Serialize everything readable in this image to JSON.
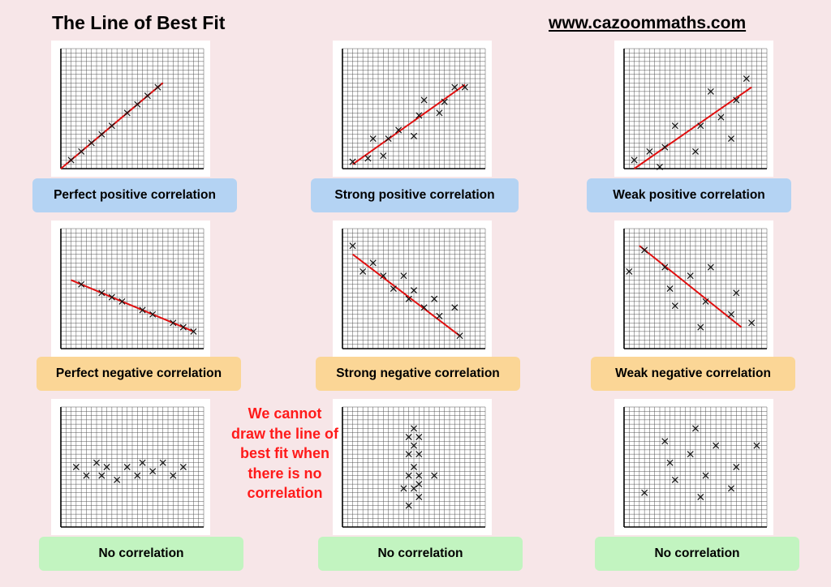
{
  "header": {
    "title": "The Line of Best Fit",
    "site": "www.cazoommaths.com"
  },
  "note": [
    "We cannot",
    "draw the line of",
    "best fit when",
    "there is no",
    "correlation"
  ],
  "colors": {
    "background": "#f7e6e8",
    "blue_label": "#b4d3f3",
    "orange_label": "#fbd696",
    "green_label": "#c2f4c0",
    "fit_line": "#e01010",
    "note_text": "#ff1a1a"
  },
  "chart_data": [
    {
      "type": "scatter",
      "label": "Perfect positive correlation",
      "label_color": "blue",
      "grid": true,
      "xlim": [
        0,
        14
      ],
      "ylim": [
        0,
        14
      ],
      "points": [
        [
          1,
          1
        ],
        [
          2,
          2
        ],
        [
          3,
          3
        ],
        [
          4,
          4
        ],
        [
          5,
          5
        ],
        [
          6.5,
          6.5
        ],
        [
          7.5,
          7.5
        ],
        [
          8.5,
          8.5
        ],
        [
          9.5,
          9.5
        ]
      ],
      "fit_line": [
        [
          0,
          0
        ],
        [
          10,
          10
        ]
      ]
    },
    {
      "type": "scatter",
      "label": "Strong positive correlation",
      "label_color": "blue",
      "grid": true,
      "xlim": [
        0,
        14
      ],
      "ylim": [
        0,
        14
      ],
      "points": [
        [
          1,
          0.8
        ],
        [
          2.5,
          1.2
        ],
        [
          3,
          3.5
        ],
        [
          4,
          1.5
        ],
        [
          4.5,
          3.5
        ],
        [
          5.5,
          4.5
        ],
        [
          7,
          3.8
        ],
        [
          7.5,
          6.2
        ],
        [
          8,
          8
        ],
        [
          9.5,
          6.5
        ],
        [
          10,
          7.8
        ],
        [
          11,
          9.5
        ],
        [
          12,
          9.5
        ]
      ],
      "fit_line": [
        [
          1,
          0.5
        ],
        [
          12,
          9.8
        ]
      ]
    },
    {
      "type": "scatter",
      "label": "Weak positive correlation",
      "label_color": "blue",
      "grid": true,
      "xlim": [
        0,
        14
      ],
      "ylim": [
        0,
        14
      ],
      "points": [
        [
          1,
          1
        ],
        [
          2.5,
          2
        ],
        [
          3.5,
          0.2
        ],
        [
          4,
          2.5
        ],
        [
          5,
          5
        ],
        [
          7,
          2
        ],
        [
          7.5,
          5
        ],
        [
          8.5,
          9
        ],
        [
          9.5,
          6
        ],
        [
          10.5,
          3.5
        ],
        [
          11,
          8
        ],
        [
          12,
          10.5
        ]
      ],
      "fit_line": [
        [
          1,
          0
        ],
        [
          12.5,
          9.5
        ]
      ]
    },
    {
      "type": "scatter",
      "label": "Perfect negative correlation",
      "label_color": "orange",
      "grid": true,
      "xlim": [
        0,
        14
      ],
      "ylim": [
        0,
        14
      ],
      "points": [
        [
          2,
          7.5
        ],
        [
          4,
          6.5
        ],
        [
          5,
          6
        ],
        [
          6,
          5.5
        ],
        [
          8,
          4.5
        ],
        [
          9,
          4
        ],
        [
          11,
          3
        ],
        [
          12,
          2.5
        ],
        [
          13,
          2
        ]
      ],
      "fit_line": [
        [
          1,
          8
        ],
        [
          13,
          2
        ]
      ]
    },
    {
      "type": "scatter",
      "label": "Strong negative correlation",
      "label_color": "orange",
      "grid": true,
      "xlim": [
        0,
        14
      ],
      "ylim": [
        0,
        14
      ],
      "points": [
        [
          1,
          12
        ],
        [
          2,
          9
        ],
        [
          3,
          10
        ],
        [
          4,
          8.5
        ],
        [
          5,
          7
        ],
        [
          6,
          8.5
        ],
        [
          6.5,
          5.8
        ],
        [
          7,
          6.8
        ],
        [
          8,
          4.8
        ],
        [
          9,
          5.8
        ],
        [
          9.5,
          3.8
        ],
        [
          11,
          4.8
        ],
        [
          11.5,
          1.5
        ]
      ],
      "fit_line": [
        [
          1,
          11
        ],
        [
          11.5,
          1.5
        ]
      ]
    },
    {
      "type": "scatter",
      "label": "Weak negative correlation",
      "label_color": "orange",
      "grid": true,
      "xlim": [
        0,
        14
      ],
      "ylim": [
        0,
        14
      ],
      "points": [
        [
          0.5,
          9
        ],
        [
          2,
          11.5
        ],
        [
          4,
          9.5
        ],
        [
          4.5,
          7
        ],
        [
          5,
          5
        ],
        [
          6.5,
          8.5
        ],
        [
          7.5,
          2.5
        ],
        [
          8,
          5.5
        ],
        [
          8.5,
          9.5
        ],
        [
          10.5,
          4
        ],
        [
          11,
          6.5
        ],
        [
          12.5,
          3
        ]
      ],
      "fit_line": [
        [
          1.5,
          12
        ],
        [
          11.5,
          2.5
        ]
      ]
    },
    {
      "type": "scatter",
      "label": "No correlation",
      "label_color": "green",
      "grid": true,
      "xlim": [
        0,
        14
      ],
      "ylim": [
        0,
        14
      ],
      "points": [
        [
          1.5,
          7
        ],
        [
          2.5,
          6
        ],
        [
          3.5,
          7.5
        ],
        [
          4,
          6
        ],
        [
          4.5,
          7
        ],
        [
          5.5,
          5.5
        ],
        [
          6.5,
          7
        ],
        [
          7.5,
          6
        ],
        [
          8,
          7.5
        ],
        [
          9,
          6.5
        ],
        [
          10,
          7.5
        ],
        [
          11,
          6
        ],
        [
          12,
          7
        ]
      ],
      "fit_line": null
    },
    {
      "type": "scatter",
      "label": "No correlation",
      "label_color": "green",
      "grid": true,
      "xlim": [
        0,
        14
      ],
      "ylim": [
        0,
        14
      ],
      "points": [
        [
          6.5,
          10.5
        ],
        [
          7.5,
          10.5
        ],
        [
          7,
          11.5
        ],
        [
          7,
          9.5
        ],
        [
          6.5,
          8.5
        ],
        [
          7.5,
          8.5
        ],
        [
          7,
          7
        ],
        [
          7.5,
          6
        ],
        [
          6.5,
          6
        ],
        [
          9,
          6
        ],
        [
          7.5,
          5
        ],
        [
          6,
          4.5
        ],
        [
          7,
          4.5
        ],
        [
          7.5,
          3.5
        ],
        [
          6.5,
          2.5
        ]
      ],
      "fit_line": null
    },
    {
      "type": "scatter",
      "label": "No correlation",
      "label_color": "green",
      "grid": true,
      "xlim": [
        0,
        14
      ],
      "ylim": [
        0,
        14
      ],
      "points": [
        [
          2,
          4
        ],
        [
          4,
          10
        ],
        [
          4.5,
          7.5
        ],
        [
          5,
          5.5
        ],
        [
          6.5,
          8.5
        ],
        [
          7,
          11.5
        ],
        [
          7.5,
          3.5
        ],
        [
          8,
          6
        ],
        [
          9,
          9.5
        ],
        [
          10.5,
          4.5
        ],
        [
          11,
          7
        ],
        [
          13,
          9.5
        ]
      ],
      "fit_line": null
    }
  ]
}
